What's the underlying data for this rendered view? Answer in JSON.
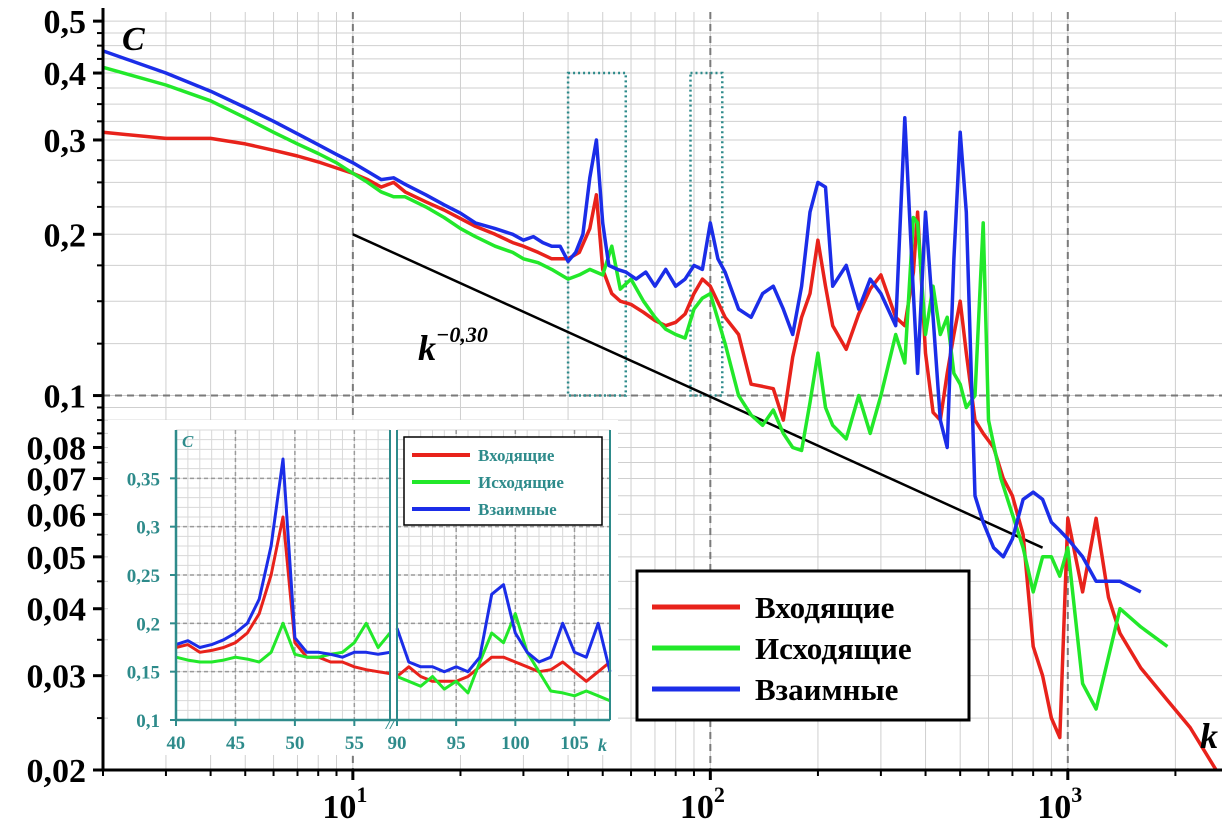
{
  "chart_data": [
    {
      "type": "line",
      "ylabel": "C",
      "xlabel": "k",
      "xscale": "log",
      "yscale": "log",
      "xlim": [
        2,
        2700
      ],
      "ylim": [
        0.02,
        0.52
      ],
      "grid": true,
      "y_ticks": [
        {
          "value": 0.02,
          "label": "0,02"
        },
        {
          "value": 0.03,
          "label": "0,03"
        },
        {
          "value": 0.04,
          "label": "0,04"
        },
        {
          "value": 0.05,
          "label": "0,05"
        },
        {
          "value": 0.06,
          "label": "0,06"
        },
        {
          "value": 0.07,
          "label": "0,07"
        },
        {
          "value": 0.08,
          "label": "0,08"
        },
        {
          "value": 0.1,
          "label": "0,1"
        },
        {
          "value": 0.2,
          "label": "0,2"
        },
        {
          "value": 0.3,
          "label": "0,3"
        },
        {
          "value": 0.4,
          "label": "0,4"
        },
        {
          "value": 0.5,
          "label": "0,5"
        }
      ],
      "x_ticks": [
        {
          "value": 10,
          "base": "10",
          "exp": "1"
        },
        {
          "value": 100,
          "base": "10",
          "exp": "2"
        },
        {
          "value": 1000,
          "base": "10",
          "exp": "3"
        }
      ],
      "fit_line": {
        "label_base": "k",
        "label_exp": "−0,30",
        "x": [
          10,
          850
        ],
        "y": [
          0.2,
          0.052
        ],
        "color": "#000000"
      },
      "highlight_boxes": [
        {
          "x": [
            40,
            58
          ],
          "y": [
            0.1,
            0.4
          ]
        },
        {
          "x": [
            88,
            108
          ],
          "y": [
            0.1,
            0.4
          ]
        }
      ],
      "legend": {
        "position": "bottom-right"
      },
      "series": [
        {
          "name": "Входящие",
          "color": "#e8221b",
          "x": [
            2,
            3,
            4,
            5,
            6,
            7,
            8,
            9,
            10,
            11,
            12,
            13,
            14,
            16,
            18,
            20,
            22,
            25,
            28,
            30,
            33,
            36,
            40,
            43,
            46,
            48,
            50,
            53,
            56,
            60,
            65,
            70,
            75,
            80,
            85,
            90,
            95,
            100,
            110,
            120,
            130,
            140,
            150,
            160,
            170,
            180,
            190,
            200,
            210,
            220,
            240,
            260,
            280,
            300,
            330,
            350,
            370,
            380,
            400,
            420,
            440,
            460,
            480,
            500,
            520,
            550,
            580,
            620,
            660,
            700,
            750,
            800,
            850,
            900,
            950,
            1000,
            1100,
            1200,
            1300,
            1400,
            1600,
            1900,
            2200,
            2600
          ],
          "y": [
            0.31,
            0.302,
            0.302,
            0.295,
            0.287,
            0.28,
            0.273,
            0.266,
            0.26,
            0.253,
            0.245,
            0.25,
            0.24,
            0.23,
            0.222,
            0.214,
            0.207,
            0.2,
            0.193,
            0.19,
            0.185,
            0.18,
            0.18,
            0.185,
            0.205,
            0.237,
            0.172,
            0.155,
            0.15,
            0.148,
            0.143,
            0.138,
            0.135,
            0.137,
            0.142,
            0.155,
            0.165,
            0.16,
            0.14,
            0.13,
            0.105,
            0.104,
            0.103,
            0.09,
            0.118,
            0.14,
            0.155,
            0.195,
            0.16,
            0.135,
            0.122,
            0.142,
            0.158,
            0.168,
            0.14,
            0.135,
            0.17,
            0.22,
            0.12,
            0.093,
            0.09,
            0.11,
            0.13,
            0.15,
            0.12,
            0.09,
            0.085,
            0.08,
            0.07,
            0.065,
            0.055,
            0.034,
            0.03,
            0.025,
            0.023,
            0.059,
            0.043,
            0.059,
            0.042,
            0.036,
            0.031,
            0.027,
            0.024,
            0.02
          ]
        },
        {
          "name": "Исходящие",
          "color": "#22e82a",
          "x": [
            2,
            3,
            4,
            5,
            6,
            7,
            8,
            9,
            10,
            11,
            12,
            13,
            14,
            16,
            18,
            20,
            22,
            25,
            28,
            30,
            33,
            36,
            40,
            43,
            46,
            50,
            53,
            56,
            60,
            65,
            70,
            75,
            80,
            85,
            90,
            95,
            100,
            110,
            120,
            130,
            140,
            150,
            160,
            170,
            180,
            190,
            200,
            210,
            220,
            240,
            260,
            280,
            300,
            330,
            350,
            370,
            380,
            400,
            420,
            440,
            460,
            480,
            500,
            520,
            550,
            580,
            600,
            650,
            700,
            750,
            800,
            850,
            900,
            950,
            1000,
            1100,
            1200,
            1400,
            1600,
            1900
          ],
          "y": [
            0.41,
            0.38,
            0.355,
            0.33,
            0.31,
            0.295,
            0.283,
            0.272,
            0.26,
            0.25,
            0.24,
            0.235,
            0.235,
            0.225,
            0.215,
            0.205,
            0.198,
            0.19,
            0.185,
            0.18,
            0.177,
            0.172,
            0.165,
            0.168,
            0.172,
            0.168,
            0.19,
            0.158,
            0.165,
            0.15,
            0.14,
            0.133,
            0.13,
            0.128,
            0.145,
            0.152,
            0.155,
            0.125,
            0.1,
            0.092,
            0.088,
            0.094,
            0.085,
            0.08,
            0.079,
            0.097,
            0.12,
            0.095,
            0.088,
            0.083,
            0.1,
            0.085,
            0.1,
            0.13,
            0.115,
            0.215,
            0.21,
            0.13,
            0.16,
            0.13,
            0.14,
            0.11,
            0.105,
            0.095,
            0.1,
            0.21,
            0.09,
            0.07,
            0.06,
            0.052,
            0.043,
            0.05,
            0.05,
            0.046,
            0.052,
            0.029,
            0.026,
            0.04,
            0.037,
            0.034
          ]
        },
        {
          "name": "Взаимные",
          "color": "#1b2de8",
          "x": [
            2,
            3,
            4,
            5,
            6,
            7,
            8,
            9,
            10,
            11,
            12,
            13,
            14,
            16,
            18,
            20,
            22,
            25,
            28,
            30,
            32,
            34,
            36,
            38,
            40,
            42,
            44,
            46,
            48,
            50,
            52,
            55,
            58,
            62,
            66,
            70,
            75,
            80,
            85,
            90,
            95,
            100,
            105,
            110,
            120,
            130,
            140,
            150,
            160,
            170,
            180,
            190,
            200,
            210,
            220,
            240,
            260,
            280,
            300,
            330,
            350,
            370,
            380,
            400,
            420,
            440,
            460,
            480,
            500,
            520,
            550,
            580,
            620,
            660,
            700,
            750,
            800,
            850,
            900,
            950,
            1000,
            1100,
            1200,
            1400,
            1600
          ],
          "y": [
            0.44,
            0.4,
            0.37,
            0.345,
            0.325,
            0.308,
            0.294,
            0.282,
            0.272,
            0.262,
            0.253,
            0.255,
            0.248,
            0.237,
            0.227,
            0.219,
            0.21,
            0.205,
            0.2,
            0.195,
            0.198,
            0.193,
            0.19,
            0.19,
            0.178,
            0.185,
            0.2,
            0.255,
            0.3,
            0.21,
            0.175,
            0.172,
            0.17,
            0.165,
            0.17,
            0.16,
            0.172,
            0.16,
            0.165,
            0.175,
            0.172,
            0.21,
            0.18,
            0.17,
            0.145,
            0.14,
            0.155,
            0.16,
            0.145,
            0.13,
            0.16,
            0.22,
            0.25,
            0.245,
            0.16,
            0.175,
            0.145,
            0.165,
            0.155,
            0.135,
            0.33,
            0.155,
            0.11,
            0.22,
            0.14,
            0.09,
            0.08,
            0.18,
            0.31,
            0.22,
            0.065,
            0.058,
            0.052,
            0.05,
            0.054,
            0.064,
            0.066,
            0.064,
            0.058,
            0.056,
            0.054,
            0.05,
            0.045,
            0.045,
            0.043
          ]
        }
      ]
    },
    {
      "type": "line",
      "ylabel": "C",
      "xlabel": "k",
      "ylim": [
        0.1,
        0.4
      ],
      "y_ticks": [
        {
          "value": 0.1,
          "label": "0,1"
        },
        {
          "value": 0.15,
          "label": "0,15"
        },
        {
          "value": 0.2,
          "label": "0,2"
        },
        {
          "value": 0.25,
          "label": "0,25"
        },
        {
          "value": 0.3,
          "label": "0,3"
        },
        {
          "value": 0.35,
          "label": "0,35"
        }
      ],
      "break_symbol": "//",
      "panels": [
        {
          "xlim": [
            40,
            58
          ],
          "x_ticks": [
            {
              "value": 40,
              "label": "40"
            },
            {
              "value": 45,
              "label": "45"
            },
            {
              "value": 50,
              "label": "50"
            },
            {
              "value": 55,
              "label": "55"
            }
          ]
        },
        {
          "xlim": [
            90,
            108
          ],
          "x_ticks": [
            {
              "value": 90,
              "label": "90"
            },
            {
              "value": 95,
              "label": "95"
            },
            {
              "value": 100,
              "label": "100"
            },
            {
              "value": 105,
              "label": "105"
            }
          ]
        }
      ],
      "legend": {
        "position": "top-right"
      },
      "series": [
        {
          "name": "Входящие",
          "color": "#e8221b",
          "segments": [
            {
              "x": [
                40,
                41,
                42,
                43,
                44,
                45,
                46,
                47,
                48,
                49,
                50,
                51,
                52,
                53,
                54,
                55,
                56,
                57,
                58
              ],
              "y": [
                0.175,
                0.178,
                0.17,
                0.172,
                0.175,
                0.18,
                0.19,
                0.21,
                0.25,
                0.31,
                0.18,
                0.165,
                0.165,
                0.16,
                0.16,
                0.155,
                0.152,
                0.15,
                0.148
              ]
            },
            {
              "x": [
                90,
                91,
                92,
                93,
                94,
                95,
                96,
                97,
                98,
                99,
                100,
                101,
                102,
                103,
                104,
                105,
                106,
                107,
                108
              ],
              "y": [
                0.145,
                0.155,
                0.145,
                0.14,
                0.14,
                0.14,
                0.145,
                0.155,
                0.165,
                0.165,
                0.16,
                0.155,
                0.15,
                0.152,
                0.16,
                0.15,
                0.14,
                0.15,
                0.16
              ]
            }
          ]
        },
        {
          "name": "Исходящие",
          "color": "#22e82a",
          "segments": [
            {
              "x": [
                40,
                41,
                42,
                43,
                44,
                45,
                46,
                47,
                48,
                49,
                50,
                51,
                52,
                53,
                54,
                55,
                56,
                57,
                58
              ],
              "y": [
                0.165,
                0.162,
                0.16,
                0.16,
                0.162,
                0.165,
                0.163,
                0.16,
                0.17,
                0.2,
                0.168,
                0.165,
                0.165,
                0.168,
                0.17,
                0.18,
                0.2,
                0.175,
                0.19
              ]
            },
            {
              "x": [
                90,
                91,
                92,
                93,
                94,
                95,
                96,
                97,
                98,
                99,
                100,
                101,
                102,
                103,
                104,
                105,
                106,
                107,
                108
              ],
              "y": [
                0.145,
                0.14,
                0.135,
                0.145,
                0.132,
                0.14,
                0.128,
                0.16,
                0.19,
                0.18,
                0.21,
                0.17,
                0.15,
                0.13,
                0.128,
                0.125,
                0.13,
                0.125,
                0.12
              ]
            }
          ]
        },
        {
          "name": "Взаимные",
          "color": "#1b2de8",
          "segments": [
            {
              "x": [
                40,
                41,
                42,
                43,
                44,
                45,
                46,
                47,
                48,
                49,
                50,
                51,
                52,
                53,
                54,
                55,
                56,
                57,
                58
              ],
              "y": [
                0.178,
                0.182,
                0.175,
                0.178,
                0.183,
                0.19,
                0.2,
                0.225,
                0.28,
                0.37,
                0.185,
                0.17,
                0.17,
                0.168,
                0.165,
                0.17,
                0.17,
                0.168,
                0.17
              ]
            },
            {
              "x": [
                90,
                91,
                92,
                93,
                94,
                95,
                96,
                97,
                98,
                99,
                100,
                101,
                102,
                103,
                104,
                105,
                106,
                107,
                108
              ],
              "y": [
                0.195,
                0.16,
                0.155,
                0.155,
                0.15,
                0.155,
                0.15,
                0.165,
                0.23,
                0.24,
                0.19,
                0.17,
                0.16,
                0.165,
                0.2,
                0.17,
                0.165,
                0.2,
                0.15
              ]
            }
          ]
        }
      ]
    }
  ]
}
